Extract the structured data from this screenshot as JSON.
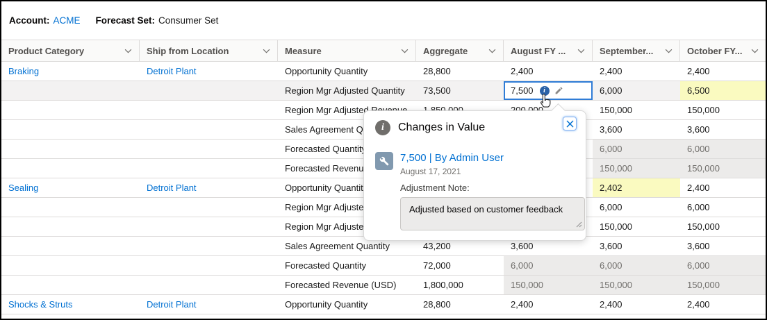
{
  "topbar": {
    "account_label": "Account:",
    "account_value": "ACME",
    "forecast_label": "Forecast Set:",
    "forecast_value": "Consumer Set"
  },
  "table": {
    "columns": [
      "Product Category",
      "Ship from Location",
      "Measure",
      "Aggregate",
      "August FY ...",
      "September...",
      "October FY..."
    ],
    "rows": [
      {
        "product": "Braking",
        "location": "Detroit Plant",
        "measure": "Opportunity Quantity",
        "aggregate": {
          "v": "28,800",
          "s": ""
        },
        "august": {
          "v": "2,400",
          "s": ""
        },
        "september": {
          "v": "2,400",
          "s": ""
        },
        "october": {
          "v": "2,400",
          "s": ""
        },
        "highlight": false
      },
      {
        "product": "",
        "location": "",
        "measure": "Region Mgr Adjusted Quantity",
        "aggregate": {
          "v": "73,500",
          "s": ""
        },
        "august": {
          "v": "7,500",
          "s": "focus"
        },
        "september": {
          "v": "6,000",
          "s": ""
        },
        "october": {
          "v": "6,500",
          "s": "yellow"
        },
        "highlight": true
      },
      {
        "product": "",
        "location": "",
        "measure": "Region Mgr Adjusted Revenue",
        "aggregate": {
          "v": "1,850,000",
          "s": ""
        },
        "august": {
          "v": "200,000",
          "s": ""
        },
        "september": {
          "v": "150,000",
          "s": ""
        },
        "october": {
          "v": "150,000",
          "s": ""
        },
        "highlight": false
      },
      {
        "product": "",
        "location": "",
        "measure": "Sales Agreement Quantity",
        "aggregate": {
          "v": "",
          "s": ""
        },
        "august": {
          "v": "",
          "s": ""
        },
        "september": {
          "v": "3,600",
          "s": ""
        },
        "october": {
          "v": "3,600",
          "s": ""
        },
        "highlight": false
      },
      {
        "product": "",
        "location": "",
        "measure": "Forecasted Quantity",
        "aggregate": {
          "v": "",
          "s": ""
        },
        "august": {
          "v": "",
          "s": ""
        },
        "september": {
          "v": "6,000",
          "s": "gray"
        },
        "october": {
          "v": "6,000",
          "s": "gray"
        },
        "highlight": false
      },
      {
        "product": "",
        "location": "",
        "measure": "Forecasted Revenue (USD)",
        "aggregate": {
          "v": "",
          "s": ""
        },
        "august": {
          "v": "",
          "s": ""
        },
        "september": {
          "v": "150,000",
          "s": "gray"
        },
        "october": {
          "v": "150,000",
          "s": "gray"
        },
        "highlight": false
      },
      {
        "product": "Sealing",
        "location": "Detroit Plant",
        "measure": "Opportunity Quantity",
        "aggregate": {
          "v": "",
          "s": ""
        },
        "august": {
          "v": "",
          "s": ""
        },
        "september": {
          "v": "2,402",
          "s": "yellow"
        },
        "october": {
          "v": "2,400",
          "s": ""
        },
        "highlight": false
      },
      {
        "product": "",
        "location": "",
        "measure": "Region Mgr Adjusted Quantity",
        "aggregate": {
          "v": "",
          "s": ""
        },
        "august": {
          "v": "",
          "s": ""
        },
        "september": {
          "v": "6,000",
          "s": ""
        },
        "october": {
          "v": "6,000",
          "s": ""
        },
        "highlight": false
      },
      {
        "product": "",
        "location": "",
        "measure": "Region Mgr Adjusted Revenue",
        "aggregate": {
          "v": "",
          "s": ""
        },
        "august": {
          "v": "",
          "s": ""
        },
        "september": {
          "v": "150,000",
          "s": ""
        },
        "october": {
          "v": "150,000",
          "s": ""
        },
        "highlight": false
      },
      {
        "product": "",
        "location": "",
        "measure": "Sales Agreement Quantity",
        "aggregate": {
          "v": "43,200",
          "s": ""
        },
        "august": {
          "v": "3,600",
          "s": ""
        },
        "september": {
          "v": "3,600",
          "s": ""
        },
        "october": {
          "v": "3,600",
          "s": ""
        },
        "highlight": false
      },
      {
        "product": "",
        "location": "",
        "measure": "Forecasted Quantity",
        "aggregate": {
          "v": "72,000",
          "s": ""
        },
        "august": {
          "v": "6,000",
          "s": "gray"
        },
        "september": {
          "v": "6,000",
          "s": "gray"
        },
        "october": {
          "v": "6,000",
          "s": "gray"
        },
        "highlight": false
      },
      {
        "product": "",
        "location": "",
        "measure": "Forecasted Revenue (USD)",
        "aggregate": {
          "v": "1,800,000",
          "s": ""
        },
        "august": {
          "v": "150,000",
          "s": "gray"
        },
        "september": {
          "v": "150,000",
          "s": "gray"
        },
        "october": {
          "v": "150,000",
          "s": "gray"
        },
        "highlight": false
      },
      {
        "product": "Shocks & Struts",
        "location": "Detroit Plant",
        "measure": "Opportunity Quantity",
        "aggregate": {
          "v": "28,800",
          "s": ""
        },
        "august": {
          "v": "2,400",
          "s": ""
        },
        "september": {
          "v": "2,400",
          "s": ""
        },
        "october": {
          "v": "2,400",
          "s": ""
        },
        "highlight": false
      }
    ]
  },
  "popover": {
    "title": "Changes in Value",
    "entry_value": "7,500 | By Admin User",
    "entry_date": "August 17, 2021",
    "note_label": "Adjustment Note:",
    "note_text": "Adjusted based on customer feedback"
  },
  "colors": {
    "link_blue": "#0070d2",
    "focus_border": "#2f7cd6",
    "changed_cell_yellow": "#fafac0",
    "readonly_cell_gray": "#ecebea",
    "row_highlight": "#f3f2f2",
    "wrench_badge": "#8199af",
    "info_badge": "#706e6b"
  }
}
